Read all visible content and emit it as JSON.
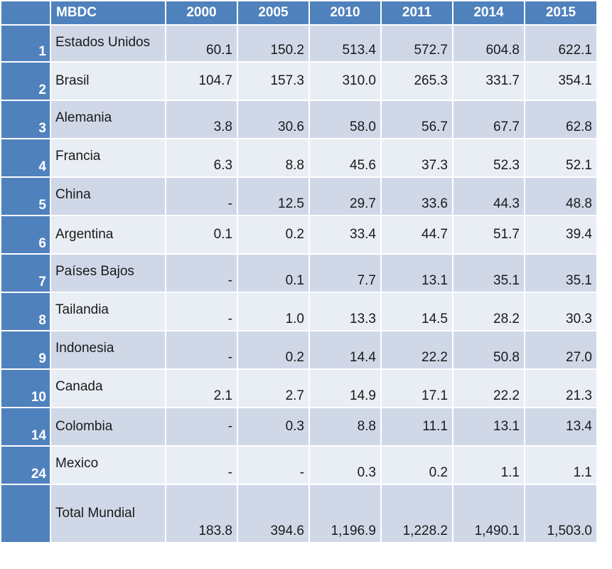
{
  "chart_data": {
    "type": "table",
    "header_label": "MBDC",
    "years": [
      "2000",
      "2005",
      "2010",
      "2011",
      "2014",
      "2015"
    ],
    "rows": [
      {
        "rank": "1",
        "country": "Estados Unidos",
        "values": [
          "60.1",
          "150.2",
          "513.4",
          "572.7",
          "604.8",
          "622.1"
        ]
      },
      {
        "rank": "2",
        "country": "Brasil",
        "values": [
          "104.7",
          "157.3",
          "310.0",
          "265.3",
          "331.7",
          "354.1"
        ]
      },
      {
        "rank": "3",
        "country": "Alemania",
        "values": [
          "3.8",
          "30.6",
          "58.0",
          "56.7",
          "67.7",
          "62.8"
        ]
      },
      {
        "rank": "4",
        "country": "Francia",
        "values": [
          "6.3",
          "8.8",
          "45.6",
          "37.3",
          "52.3",
          "52.1"
        ]
      },
      {
        "rank": "5",
        "country": "China",
        "values": [
          "-",
          "12.5",
          "29.7",
          "33.6",
          "44.3",
          "48.8"
        ]
      },
      {
        "rank": "6",
        "country": "Argentina",
        "values": [
          "0.1",
          "0.2",
          "33.4",
          "44.7",
          "51.7",
          "39.4"
        ]
      },
      {
        "rank": "7",
        "country": "Países Bajos",
        "values": [
          "-",
          "0.1",
          "7.7",
          "13.1",
          "35.1",
          "35.1"
        ]
      },
      {
        "rank": "8",
        "country": "Tailandia",
        "values": [
          "-",
          "1.0",
          "13.3",
          "14.5",
          "28.2",
          "30.3"
        ]
      },
      {
        "rank": "9",
        "country": "Indonesia",
        "values": [
          "-",
          "0.2",
          "14.4",
          "22.2",
          "50.8",
          "27.0"
        ]
      },
      {
        "rank": "10",
        "country": "Canada",
        "values": [
          "2.1",
          "2.7",
          "14.9",
          "17.1",
          "22.2",
          "21.3"
        ]
      },
      {
        "rank": "14",
        "country": "Colombia",
        "values": [
          "-",
          "0.3",
          "8.8",
          "11.1",
          "13.1",
          "13.4"
        ]
      },
      {
        "rank": "24",
        "country": "Mexico",
        "values": [
          "-",
          "-",
          "0.3",
          "0.2",
          "1.1",
          "1.1"
        ]
      }
    ],
    "total": {
      "rank": "",
      "label": "Total Mundial",
      "values": [
        "183.8",
        "394.6",
        "1,196.9",
        "1,228.2",
        "1,490.1",
        "1,503.0"
      ]
    },
    "colors": {
      "header": "#4f81bd",
      "row_dark": "#d0d8e8",
      "row_light": "#e9edf4",
      "header_text": "#ffffff"
    }
  }
}
